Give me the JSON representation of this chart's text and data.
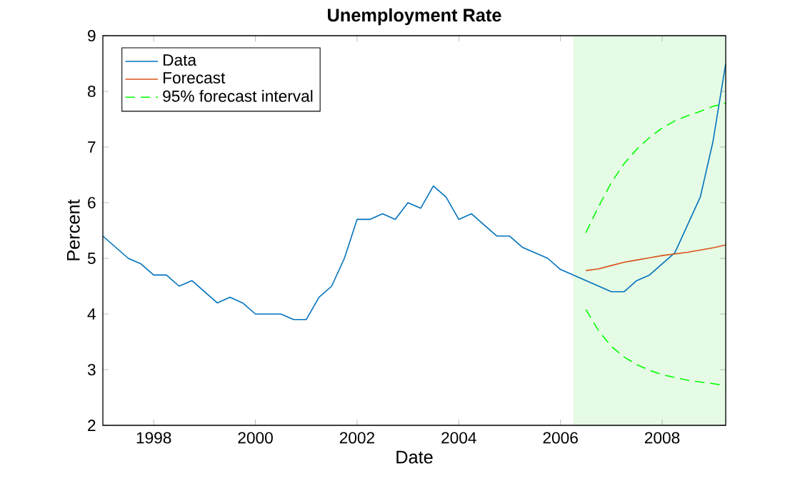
{
  "chart_data": {
    "type": "line",
    "title": "Unemployment Rate",
    "xlabel": "Date",
    "ylabel": "Percent",
    "xlim": [
      1997,
      2009.25
    ],
    "ylim": [
      2,
      9
    ],
    "xticks": [
      1998,
      2000,
      2002,
      2004,
      2006,
      2008
    ],
    "yticks": [
      2,
      3,
      4,
      5,
      6,
      7,
      8,
      9
    ],
    "grid": false,
    "legend": "top left",
    "bands": [
      {
        "axis": "x",
        "from": 2006.25,
        "to": 2009.25,
        "color": "#e5fbe5"
      }
    ],
    "series": [
      {
        "name": "Data",
        "color": "#0072bd",
        "line_style": "solid",
        "x": [
          1997,
          1997.25,
          1997.5,
          1997.75,
          1998,
          1998.25,
          1998.5,
          1998.75,
          1999,
          1999.25,
          1999.5,
          1999.75,
          2000,
          2000.25,
          2000.5,
          2000.75,
          2001,
          2001.25,
          2001.5,
          2001.75,
          2002,
          2002.25,
          2002.5,
          2002.75,
          2003,
          2003.25,
          2003.5,
          2003.75,
          2004,
          2004.25,
          2004.5,
          2004.75,
          2005,
          2005.25,
          2005.5,
          2005.75,
          2006,
          2006.25,
          2006.5,
          2006.75,
          2007,
          2007.25,
          2007.5,
          2007.75,
          2008,
          2008.25,
          2008.5,
          2008.75,
          2009,
          2009.25
        ],
        "values": [
          5.4,
          5.2,
          5.0,
          4.9,
          4.7,
          4.7,
          4.5,
          4.6,
          4.4,
          4.2,
          4.3,
          4.2,
          4.0,
          4.0,
          4.0,
          3.9,
          3.9,
          4.3,
          4.5,
          5.0,
          5.7,
          5.7,
          5.8,
          5.7,
          6.0,
          5.9,
          6.3,
          6.1,
          5.7,
          5.8,
          5.6,
          5.4,
          5.4,
          5.2,
          5.1,
          5.0,
          4.8,
          4.7,
          4.6,
          4.5,
          4.4,
          4.4,
          4.6,
          4.7,
          4.9,
          5.1,
          5.6,
          6.1,
          7.1,
          8.5
        ]
      },
      {
        "name": "Forecast",
        "color": "#d95319",
        "line_style": "solid",
        "x": [
          2006.5,
          2006.75,
          2007,
          2007.25,
          2007.5,
          2007.75,
          2008,
          2008.25,
          2008.5,
          2008.75,
          2009,
          2009.25
        ],
        "values": [
          4.78,
          4.81,
          4.87,
          4.93,
          4.97,
          5.01,
          5.05,
          5.08,
          5.11,
          5.15,
          5.19,
          5.24
        ]
      },
      {
        "name": "95% forecast interval",
        "color": "#00ff00",
        "line_style": "dashed",
        "x": [
          2006.5,
          2006.75,
          2007,
          2007.25,
          2007.5,
          2007.75,
          2008,
          2008.25,
          2008.5,
          2008.75,
          2009,
          2009.25
        ],
        "values": [
          5.46,
          5.93,
          6.36,
          6.7,
          6.96,
          7.17,
          7.34,
          7.47,
          7.56,
          7.64,
          7.73,
          7.79
        ]
      },
      {
        "color": "#00ff00",
        "line_style": "dashed",
        "x": [
          2006.5,
          2006.75,
          2007,
          2007.25,
          2007.5,
          2007.75,
          2008,
          2008.25,
          2008.5,
          2008.75,
          2009,
          2009.25
        ],
        "values": [
          4.08,
          3.7,
          3.42,
          3.23,
          3.09,
          2.99,
          2.91,
          2.86,
          2.81,
          2.78,
          2.75,
          2.71
        ]
      }
    ]
  }
}
